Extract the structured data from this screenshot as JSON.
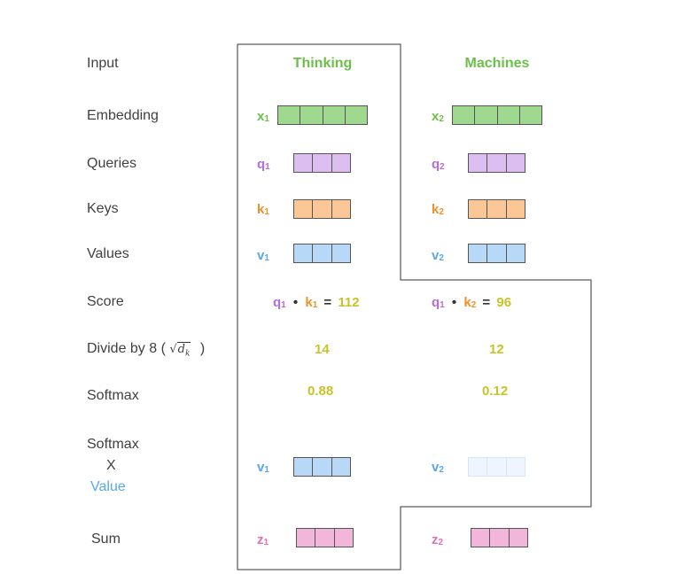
{
  "labels": {
    "input": "Input",
    "embedding": "Embedding",
    "queries": "Queries",
    "keys": "Keys",
    "values": "Values",
    "score": "Score",
    "divide_prefix": "Divide by 8 (",
    "divide_sqrt": "d",
    "divide_sqrt_sub": "k",
    "divide_suffix": ")",
    "softmax": "Softmax",
    "softmax_value_1": "Softmax",
    "softmax_value_x": "X",
    "softmax_value_2": "Value",
    "sum": "Sum"
  },
  "words": {
    "w1": "Thinking",
    "w2": "Machines"
  },
  "vectors": {
    "x": "x",
    "q": "q",
    "k": "k",
    "v": "v",
    "z": "z",
    "s1": "1",
    "s2": "2"
  },
  "score": {
    "op": "•",
    "eq": "=",
    "s1_value": "112",
    "s2_value": "96"
  },
  "divide": {
    "d1": "14",
    "d2": "12"
  },
  "softmax": {
    "s1": "0.88",
    "s2": "0.12"
  },
  "colors": {
    "embedding": "#9fd88f",
    "query": "#dcbff0",
    "key": "#fcc796",
    "value": "#b7d8f6",
    "value_faded": "#eef5fd",
    "sum": "#f2b6da",
    "word": "#6cc04a",
    "number": "#c9c22a"
  }
}
